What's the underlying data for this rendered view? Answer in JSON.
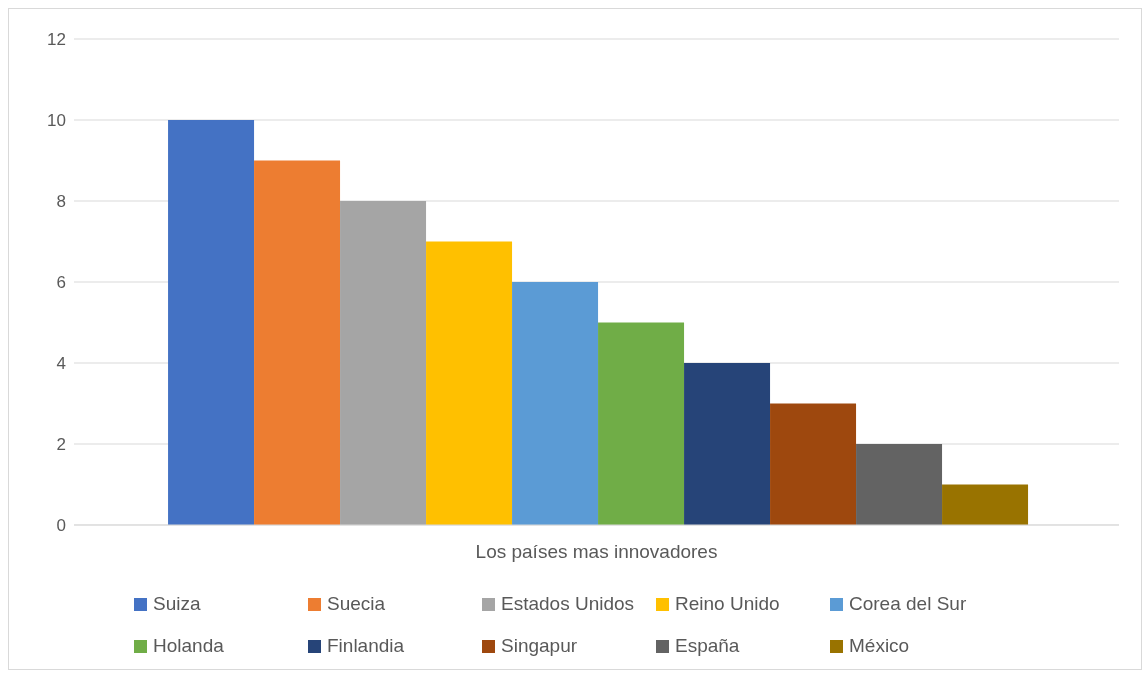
{
  "chart_data": {
    "type": "bar",
    "categories": [
      "Los países mas innovadores"
    ],
    "series": [
      {
        "name": "Suiza",
        "color": "#4472c4",
        "values": [
          10
        ]
      },
      {
        "name": "Suecia",
        "color": "#ed7d31",
        "values": [
          9
        ]
      },
      {
        "name": "Estados Unidos",
        "color": "#a5a5a5",
        "values": [
          8
        ]
      },
      {
        "name": "Reino Unido",
        "color": "#ffc000",
        "values": [
          7
        ]
      },
      {
        "name": "Corea del Sur",
        "color": "#5b9bd5",
        "values": [
          6
        ]
      },
      {
        "name": "Holanda",
        "color": "#70ad47",
        "values": [
          5
        ]
      },
      {
        "name": "Finlandia",
        "color": "#264478",
        "values": [
          4
        ]
      },
      {
        "name": "Singapur",
        "color": "#9e480e",
        "values": [
          3
        ]
      },
      {
        "name": "España",
        "color": "#636363",
        "values": [
          2
        ]
      },
      {
        "name": "México",
        "color": "#997300",
        "values": [
          1
        ]
      }
    ],
    "ylim": [
      0,
      12
    ],
    "yticks": [
      0,
      2,
      4,
      6,
      8,
      10,
      12
    ],
    "grid": "y",
    "legend": "bottom"
  }
}
